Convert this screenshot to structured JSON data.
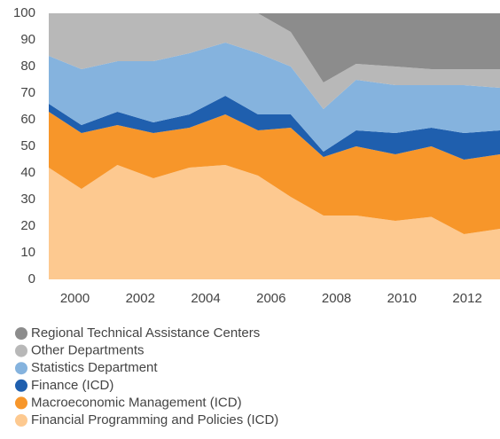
{
  "chart_data": {
    "type": "stacked_area",
    "x": [
      1999.2,
      2000.2,
      2001.3,
      2002.4,
      2003.5,
      2004.6,
      2005.6,
      2006.6,
      2007.6,
      2008.6,
      2009.8,
      2010.9,
      2011.9,
      2013.0
    ],
    "xlim": [
      1999.2,
      2013.0
    ],
    "xticks": [
      2000,
      2002,
      2004,
      2006,
      2008,
      2010,
      2012
    ],
    "ylim": [
      0,
      100
    ],
    "yticks": [
      0,
      10,
      20,
      30,
      40,
      50,
      60,
      70,
      80,
      90,
      100
    ],
    "grid": false,
    "legend": "bottom",
    "series": [
      {
        "name": "Financial Programming and Policies (ICD)",
        "color": "#fdc990",
        "values": [
          42,
          34,
          43,
          38,
          42,
          43,
          39,
          31,
          24,
          24,
          22,
          23.5,
          17,
          19
        ]
      },
      {
        "name": "Macroeconomic Management (ICD)",
        "color": "#f7962a",
        "values": [
          21,
          21,
          15,
          17,
          15,
          19,
          17,
          26,
          22,
          26,
          25,
          26.5,
          28,
          28
        ]
      },
      {
        "name": "Finance (ICD)",
        "color": "#1f5fae",
        "values": [
          3,
          3,
          5,
          4,
          5,
          7,
          6,
          5,
          2,
          6,
          8,
          7,
          10,
          9
        ]
      },
      {
        "name": "Statistics Department",
        "color": "#85b3de",
        "values": [
          18,
          21,
          19,
          23,
          23,
          20,
          23,
          18,
          16,
          19,
          18,
          16,
          18,
          16
        ]
      },
      {
        "name": "Other Departments",
        "color": "#b8b8b8",
        "values": [
          16,
          21,
          18,
          18,
          15,
          11,
          15,
          13,
          10,
          6,
          7,
          6,
          6,
          7
        ]
      },
      {
        "name": "Regional Technical Assistance Centers",
        "color": "#8c8c8c",
        "values": [
          0,
          0,
          0,
          0,
          0,
          0,
          0,
          7,
          26,
          19,
          20,
          21,
          21,
          21
        ]
      }
    ]
  }
}
